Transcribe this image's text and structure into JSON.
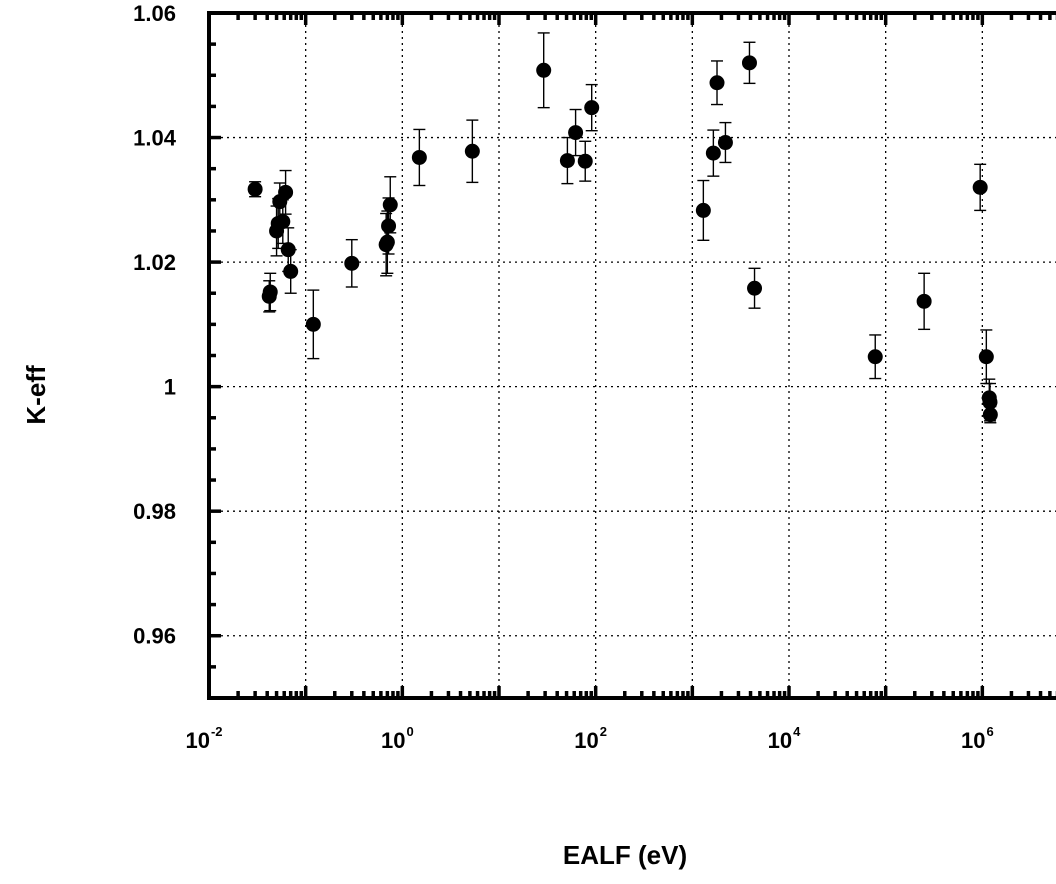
{
  "chart_data": {
    "type": "scatter",
    "xlabel": "EALF (eV)",
    "ylabel": "K-eff",
    "xscale": "log",
    "xlim": [
      0.01,
      10000000
    ],
    "ylim": [
      0.95,
      1.06
    ],
    "grid": true,
    "x_ticks": [
      {
        "base": "10",
        "exp": "-2",
        "value": 0.01
      },
      {
        "base": "10",
        "exp": "0",
        "value": 1
      },
      {
        "base": "10",
        "exp": "2",
        "value": 100
      },
      {
        "base": "10",
        "exp": "4",
        "value": 10000
      },
      {
        "base": "10",
        "exp": "6",
        "value": 1000000
      }
    ],
    "y_ticks": [
      "0.96",
      "0.98",
      "1",
      "1.02",
      "1.04",
      "1.06"
    ],
    "y_tick_values": [
      0.96,
      0.98,
      1.0,
      1.02,
      1.04,
      1.06
    ],
    "points": [
      {
        "x": 0.03,
        "y": 1.0317,
        "err": 0.0012
      },
      {
        "x": 0.042,
        "y": 1.0145,
        "err": 0.0025
      },
      {
        "x": 0.043,
        "y": 1.0152,
        "err": 0.003
      },
      {
        "x": 0.05,
        "y": 1.025,
        "err": 0.004
      },
      {
        "x": 0.052,
        "y": 1.0262,
        "err": 0.004
      },
      {
        "x": 0.054,
        "y": 1.0297,
        "err": 0.003
      },
      {
        "x": 0.058,
        "y": 1.0265,
        "err": 0.0035
      },
      {
        "x": 0.062,
        "y": 1.0312,
        "err": 0.0035
      },
      {
        "x": 0.066,
        "y": 1.022,
        "err": 0.0035
      },
      {
        "x": 0.07,
        "y": 1.0185,
        "err": 0.0035
      },
      {
        "x": 0.12,
        "y": 1.01,
        "err": 0.0055
      },
      {
        "x": 0.3,
        "y": 1.0198,
        "err": 0.0038
      },
      {
        "x": 0.68,
        "y": 1.0228,
        "err": 0.005
      },
      {
        "x": 0.7,
        "y": 1.0232,
        "err": 0.005
      },
      {
        "x": 0.72,
        "y": 1.0258,
        "err": 0.0045
      },
      {
        "x": 0.75,
        "y": 1.0292,
        "err": 0.0045
      },
      {
        "x": 1.5,
        "y": 1.0368,
        "err": 0.0045
      },
      {
        "x": 5.3,
        "y": 1.0378,
        "err": 0.005
      },
      {
        "x": 29,
        "y": 1.0508,
        "err": 0.006
      },
      {
        "x": 51,
        "y": 1.0363,
        "err": 0.0037
      },
      {
        "x": 62,
        "y": 1.0408,
        "err": 0.0037
      },
      {
        "x": 78,
        "y": 1.0362,
        "err": 0.0032
      },
      {
        "x": 91,
        "y": 1.0448,
        "err": 0.0037
      },
      {
        "x": 1300,
        "y": 1.0283,
        "err": 0.0048
      },
      {
        "x": 1650,
        "y": 1.0375,
        "err": 0.0037
      },
      {
        "x": 1800,
        "y": 1.0488,
        "err": 0.0035
      },
      {
        "x": 2200,
        "y": 1.0392,
        "err": 0.0032
      },
      {
        "x": 3900,
        "y": 1.052,
        "err": 0.0033
      },
      {
        "x": 4400,
        "y": 1.0158,
        "err": 0.0032
      },
      {
        "x": 78000,
        "y": 1.0048,
        "err": 0.0035
      },
      {
        "x": 250000,
        "y": 1.0137,
        "err": 0.0045
      },
      {
        "x": 950000,
        "y": 1.032,
        "err": 0.0037
      },
      {
        "x": 1100000,
        "y": 1.0048,
        "err": 0.0043
      },
      {
        "x": 1180000,
        "y": 0.9982,
        "err": 0.003
      },
      {
        "x": 1200000,
        "y": 0.9975,
        "err": 0.003
      },
      {
        "x": 1210000,
        "y": 0.9955,
        "err": 0.0013
      }
    ]
  }
}
